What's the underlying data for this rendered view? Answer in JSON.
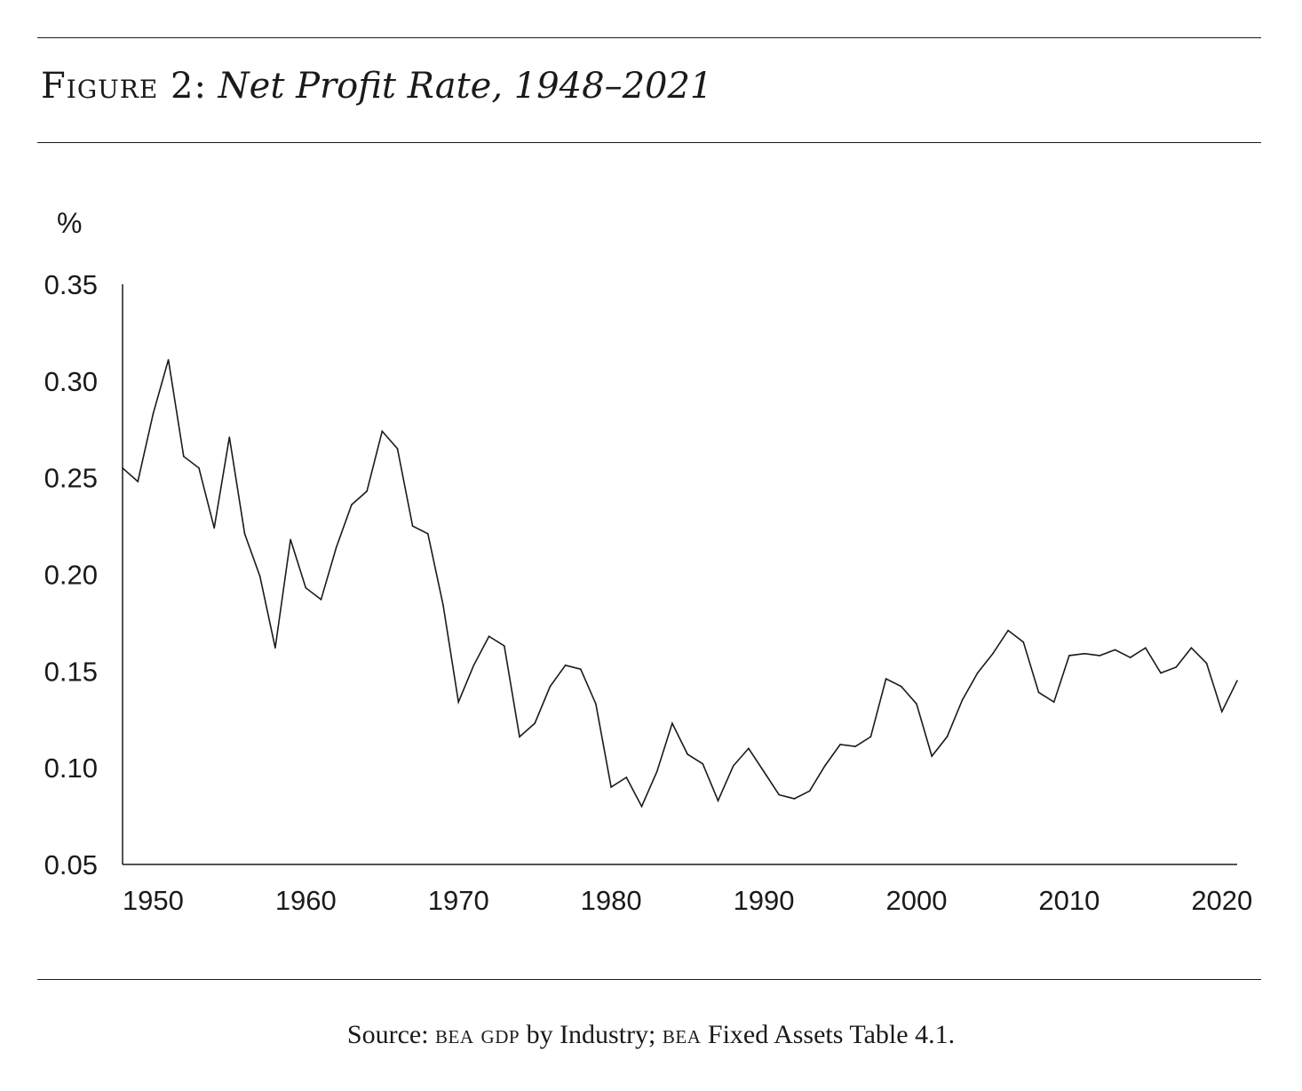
{
  "figure": {
    "label": "Figure 2:",
    "title": "Net Profit Rate, 1948–2021"
  },
  "source": {
    "prefix": "Source: ",
    "org1": "BEA",
    "part1": " GDP",
    "mid": " by Industry; ",
    "org2": "BEA",
    "part2": " Fixed Assets Table 4.1."
  },
  "chart_data": {
    "type": "line",
    "title": "Net Profit Rate, 1948–2021",
    "ylabel": "%",
    "xlabel": "",
    "ylim": [
      0.05,
      0.35
    ],
    "xlim": [
      1948,
      2021
    ],
    "yticks": [
      "0.05",
      "0.10",
      "0.15",
      "0.20",
      "0.25",
      "0.30",
      "0.35"
    ],
    "xticks": [
      "1950",
      "1960",
      "1970",
      "1980",
      "1990",
      "2000",
      "2010",
      "2020"
    ],
    "grid": false,
    "series": [
      {
        "x": [
          1948,
          1949,
          1950,
          1951,
          1952,
          1953,
          1954,
          1955,
          1956,
          1957,
          1958,
          1959,
          1960,
          1961,
          1962,
          1963,
          1964,
          1965,
          1966,
          1967,
          1968,
          1969,
          1970,
          1971,
          1972,
          1973,
          1974,
          1975,
          1976,
          1977,
          1978,
          1979,
          1980,
          1981,
          1982,
          1983,
          1984,
          1985,
          1986,
          1987,
          1988,
          1989,
          1990,
          1991,
          1992,
          1993,
          1994,
          1995,
          1996,
          1997,
          1998,
          1999,
          2000,
          2001,
          2002,
          2003,
          2004,
          2005,
          2006,
          2007,
          2008,
          2009,
          2010,
          2011,
          2012,
          2013,
          2014,
          2015,
          2016,
          2017,
          2018,
          2019,
          2020,
          2021
        ],
        "y": [
          0.255,
          0.248,
          0.283,
          0.311,
          0.261,
          0.255,
          0.224,
          0.271,
          0.221,
          0.199,
          0.162,
          0.218,
          0.193,
          0.187,
          0.214,
          0.236,
          0.243,
          0.274,
          0.265,
          0.225,
          0.221,
          0.184,
          0.134,
          0.153,
          0.168,
          0.163,
          0.116,
          0.123,
          0.142,
          0.153,
          0.151,
          0.133,
          0.09,
          0.095,
          0.08,
          0.098,
          0.123,
          0.107,
          0.102,
          0.083,
          0.101,
          0.11,
          0.098,
          0.086,
          0.084,
          0.088,
          0.101,
          0.112,
          0.111,
          0.116,
          0.146,
          0.142,
          0.133,
          0.106,
          0.116,
          0.135,
          0.149,
          0.159,
          0.171,
          0.165,
          0.139,
          0.134,
          0.158,
          0.159,
          0.158,
          0.161,
          0.157,
          0.162,
          0.149,
          0.152,
          0.162,
          0.154,
          0.129,
          0.145
        ]
      }
    ]
  }
}
